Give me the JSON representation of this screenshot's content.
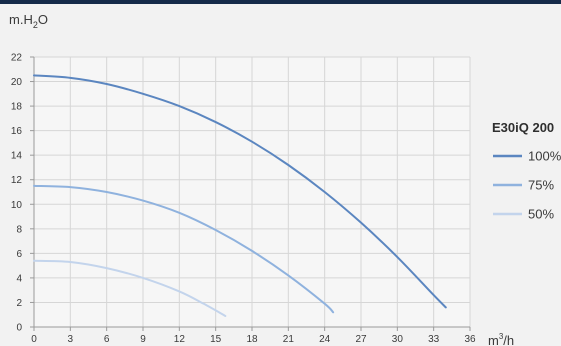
{
  "chart_data": {
    "type": "line",
    "title": "",
    "ylabel": {
      "main": "m.H",
      "sub": "2",
      "tail": "O"
    },
    "xlabel": {
      "main": "m",
      "sup": "3",
      "tail": "/h"
    },
    "xlim": [
      0,
      36
    ],
    "ylim": [
      0,
      22
    ],
    "xticks": [
      0,
      3,
      6,
      9,
      12,
      15,
      18,
      21,
      24,
      27,
      30,
      33,
      36
    ],
    "yticks": [
      0,
      2,
      4,
      6,
      8,
      10,
      12,
      14,
      16,
      18,
      20,
      22
    ],
    "grid": true,
    "legend": {
      "title": "E30iQ 200",
      "position": "right"
    },
    "series": [
      {
        "name": "100%",
        "color": "#5b86c0",
        "points": [
          [
            0,
            20.5
          ],
          [
            3,
            20.3
          ],
          [
            6,
            19.8
          ],
          [
            9,
            19.0
          ],
          [
            12,
            18.0
          ],
          [
            15,
            16.7
          ],
          [
            18,
            15.1
          ],
          [
            21,
            13.2
          ],
          [
            24,
            11.0
          ],
          [
            27,
            8.5
          ],
          [
            30,
            5.7
          ],
          [
            33,
            2.6
          ],
          [
            34,
            1.6
          ]
        ]
      },
      {
        "name": "75%",
        "color": "#8fb2de",
        "points": [
          [
            0,
            11.5
          ],
          [
            3,
            11.4
          ],
          [
            6,
            11.0
          ],
          [
            9,
            10.3
          ],
          [
            12,
            9.3
          ],
          [
            15,
            7.9
          ],
          [
            18,
            6.2
          ],
          [
            21,
            4.2
          ],
          [
            24,
            1.9
          ],
          [
            24.7,
            1.2
          ]
        ]
      },
      {
        "name": "50%",
        "color": "#c3d4ec",
        "points": [
          [
            0,
            5.4
          ],
          [
            3,
            5.3
          ],
          [
            6,
            4.8
          ],
          [
            9,
            4.0
          ],
          [
            12,
            2.9
          ],
          [
            14,
            1.9
          ],
          [
            15.8,
            0.9
          ]
        ]
      }
    ]
  }
}
